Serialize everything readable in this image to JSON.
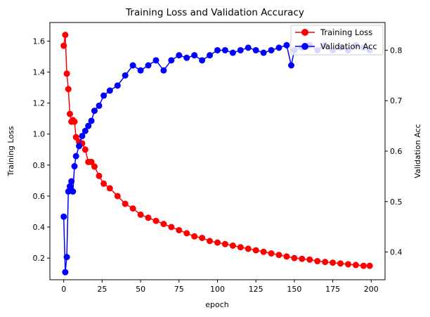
{
  "chart_data": {
    "type": "line",
    "title": "Training Loss and Validation Accuracy",
    "xlabel": "epoch",
    "ylabel_left": "Training Loss",
    "ylabel_right": "Validation Acc",
    "xlim": [
      -9,
      209
    ],
    "ylim_left": [
      0.06,
      1.72
    ],
    "ylim_right": [
      0.345,
      0.855
    ],
    "x_ticks": [
      0,
      25,
      50,
      75,
      100,
      125,
      150,
      175,
      200
    ],
    "y_left_ticks": [
      0.2,
      0.4,
      0.6,
      0.8,
      1.0,
      1.2,
      1.4,
      1.6
    ],
    "y_right_ticks": [
      0.4,
      0.5,
      0.6,
      0.7,
      0.8
    ],
    "y_left_tick_labels": [
      "0.2",
      "0.4",
      "0.6",
      "0.8",
      "1.0",
      "1.2",
      "1.4",
      "1.6"
    ],
    "y_right_tick_labels": [
      "0.4",
      "0.5",
      "0.6",
      "0.7",
      "0.8"
    ],
    "grid": false,
    "legend_position": "top-right",
    "series": [
      {
        "name": "Training Loss",
        "axis": "left",
        "color": "#ff0000",
        "marker": "circle",
        "keypoints": [
          [
            0,
            1.57
          ],
          [
            1,
            1.64
          ],
          [
            2,
            1.39
          ],
          [
            3,
            1.29
          ],
          [
            4,
            1.13
          ],
          [
            5,
            1.08
          ],
          [
            6,
            1.09
          ],
          [
            7,
            1.08
          ],
          [
            8,
            0.98
          ],
          [
            10,
            0.95
          ],
          [
            12,
            0.94
          ],
          [
            14,
            0.9
          ],
          [
            16,
            0.82
          ],
          [
            18,
            0.82
          ],
          [
            20,
            0.79
          ],
          [
            23,
            0.73
          ],
          [
            26,
            0.68
          ],
          [
            30,
            0.65
          ],
          [
            35,
            0.6
          ],
          [
            40,
            0.55
          ],
          [
            45,
            0.52
          ],
          [
            50,
            0.48
          ],
          [
            55,
            0.46
          ],
          [
            60,
            0.44
          ],
          [
            65,
            0.42
          ],
          [
            70,
            0.4
          ],
          [
            75,
            0.38
          ],
          [
            80,
            0.36
          ],
          [
            85,
            0.34
          ],
          [
            90,
            0.33
          ],
          [
            95,
            0.31
          ],
          [
            100,
            0.3
          ],
          [
            105,
            0.29
          ],
          [
            110,
            0.28
          ],
          [
            115,
            0.27
          ],
          [
            120,
            0.26
          ],
          [
            125,
            0.25
          ],
          [
            130,
            0.24
          ],
          [
            135,
            0.23
          ],
          [
            140,
            0.22
          ],
          [
            145,
            0.21
          ],
          [
            150,
            0.2
          ],
          [
            155,
            0.195
          ],
          [
            160,
            0.19
          ],
          [
            165,
            0.18
          ],
          [
            170,
            0.175
          ],
          [
            175,
            0.17
          ],
          [
            180,
            0.165
          ],
          [
            185,
            0.16
          ],
          [
            190,
            0.155
          ],
          [
            195,
            0.15
          ],
          [
            199,
            0.15
          ]
        ]
      },
      {
        "name": "Validation Acc",
        "axis": "right",
        "color": "#0000ff",
        "marker": "circle",
        "keypoints": [
          [
            0,
            0.47
          ],
          [
            1,
            0.36
          ],
          [
            2,
            0.39
          ],
          [
            3,
            0.52
          ],
          [
            4,
            0.53
          ],
          [
            5,
            0.54
          ],
          [
            6,
            0.52
          ],
          [
            7,
            0.57
          ],
          [
            8,
            0.59
          ],
          [
            10,
            0.61
          ],
          [
            12,
            0.63
          ],
          [
            14,
            0.64
          ],
          [
            16,
            0.65
          ],
          [
            18,
            0.66
          ],
          [
            20,
            0.68
          ],
          [
            23,
            0.69
          ],
          [
            26,
            0.71
          ],
          [
            30,
            0.72
          ],
          [
            35,
            0.73
          ],
          [
            40,
            0.75
          ],
          [
            45,
            0.77
          ],
          [
            50,
            0.76
          ],
          [
            55,
            0.77
          ],
          [
            60,
            0.78
          ],
          [
            65,
            0.76
          ],
          [
            70,
            0.78
          ],
          [
            75,
            0.79
          ],
          [
            80,
            0.785
          ],
          [
            85,
            0.79
          ],
          [
            90,
            0.78
          ],
          [
            95,
            0.79
          ],
          [
            100,
            0.8
          ],
          [
            105,
            0.8
          ],
          [
            110,
            0.795
          ],
          [
            115,
            0.8
          ],
          [
            120,
            0.805
          ],
          [
            125,
            0.8
          ],
          [
            130,
            0.795
          ],
          [
            135,
            0.8
          ],
          [
            140,
            0.805
          ],
          [
            145,
            0.81
          ],
          [
            148,
            0.77
          ],
          [
            150,
            0.8
          ],
          [
            155,
            0.805
          ],
          [
            160,
            0.81
          ],
          [
            165,
            0.8
          ],
          [
            170,
            0.81
          ],
          [
            175,
            0.8
          ],
          [
            180,
            0.805
          ],
          [
            185,
            0.8
          ],
          [
            190,
            0.81
          ],
          [
            195,
            0.805
          ],
          [
            199,
            0.8
          ]
        ]
      }
    ]
  }
}
